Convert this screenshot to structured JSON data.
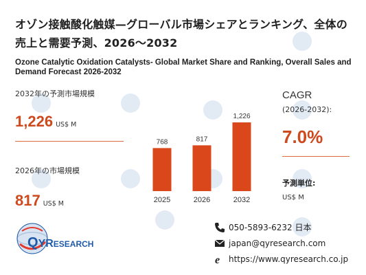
{
  "title_jp": "オゾン接触酸化触媒—グローバル市場シェアとランキング、全体の売上と需要予測、2026～2032",
  "title_en": "Ozone Catalytic Oxidation Catalysts- Global Market Share and Ranking, Overall Sales and Demand Forecast 2026-2032",
  "left_panel": {
    "label_2032": "2032年の予測市場規模",
    "value_2032": "1,226",
    "unit_2032": "US$ M",
    "label_2026": "2026年の市場規模",
    "value_2026": "817",
    "unit_2026": "US$ M"
  },
  "right_panel": {
    "cagr_title": "CAGR",
    "cagr_range": "(2026-2032):",
    "cagr_value": "7.0%",
    "unit_title": "予測単位:",
    "unit_value": "US$ M"
  },
  "contact": {
    "phone": "050-5893-6232 日本",
    "email": "japan@qyresearch.com",
    "website": "https://www.qyresearch.co.jp"
  },
  "logo": {
    "q": "Q",
    "yr": "YR",
    "esearch": "ESEARCH"
  },
  "colors": {
    "accent": "#cc4a1e",
    "bar": "#d9471b",
    "divider": "#e06a40",
    "logo_blue": "#1e5aa8"
  },
  "chart_data": {
    "type": "bar",
    "categories": [
      "2025",
      "2026",
      "2032"
    ],
    "values": [
      768,
      817,
      1226
    ],
    "data_labels": [
      "768",
      "817",
      "1,226"
    ],
    "title": "",
    "xlabel": "",
    "ylabel": "",
    "ylim": [
      0,
      1300
    ],
    "grid": false,
    "legend": "none"
  }
}
